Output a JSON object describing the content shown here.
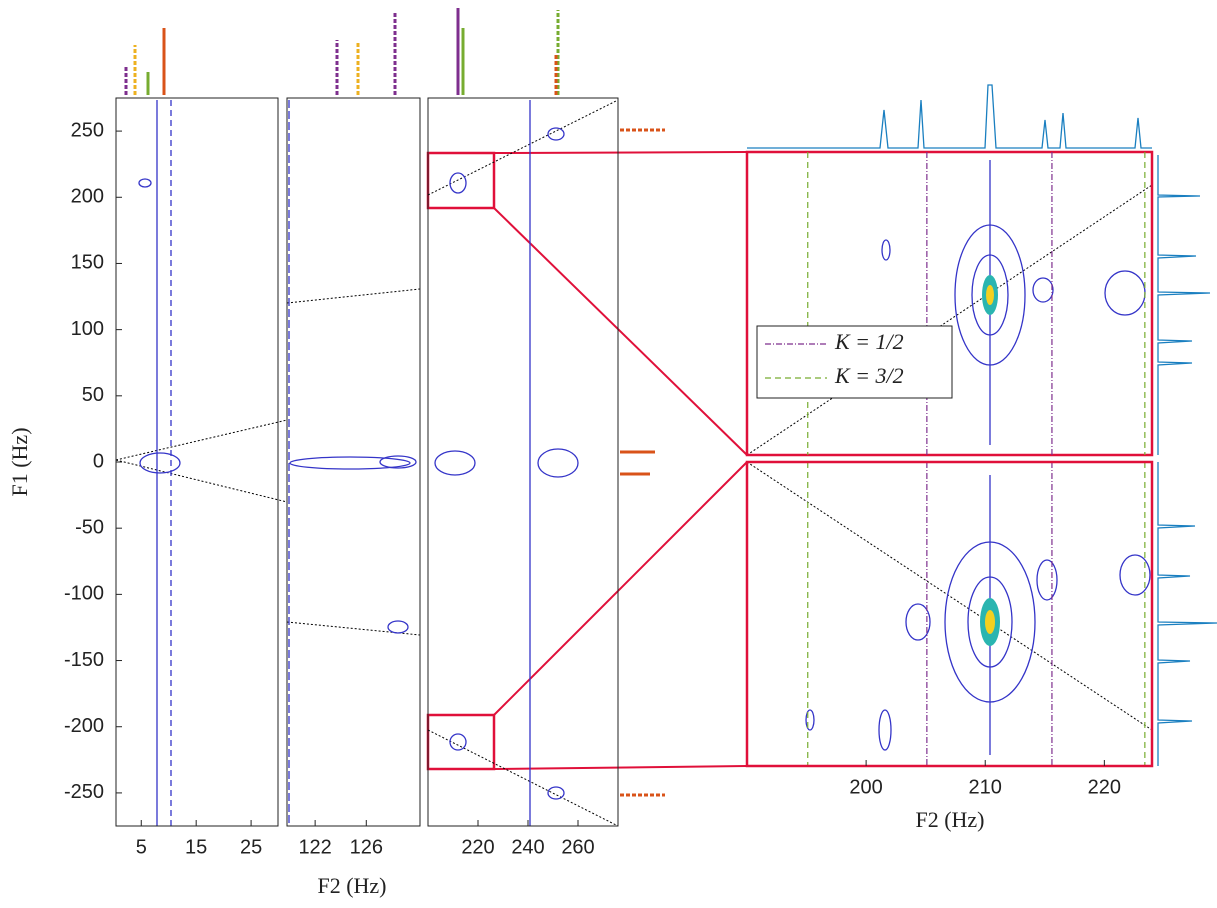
{
  "chart_data": [
    {
      "type": "contour",
      "ylabel": "F1 (Hz)",
      "xlim": [
        0.4,
        29.9
      ],
      "xticks": [
        5,
        15,
        25
      ],
      "ylim": [
        -275,
        275
      ],
      "yticks": [
        250,
        200,
        150,
        100,
        50,
        0,
        -50,
        -100,
        -150,
        -200,
        -250
      ]
    },
    {
      "type": "contour",
      "xlabel": "F2 (Hz)",
      "xlim": [
        119.8,
        130.2
      ],
      "xticks": [
        122,
        126
      ],
      "ylim": [
        -275,
        275
      ]
    },
    {
      "type": "contour",
      "xlim": [
        200,
        276
      ],
      "xticks": [
        220,
        240,
        260
      ],
      "ylim": [
        -275,
        275
      ]
    },
    {
      "type": "contour",
      "xlim": [
        190,
        224
      ],
      "legend": "middle left",
      "series": [
        {
          "name": "K = 1/2",
          "color": "#7E2F8E",
          "values": [
            205.1,
            215.6
          ]
        },
        {
          "name": "K = 3/2",
          "color": "#77AC30",
          "values": [
            195.1,
            223.4
          ]
        }
      ]
    },
    {
      "type": "contour",
      "xlabel": "F2 (Hz)",
      "xlim": [
        190,
        224
      ],
      "xticks": [
        200,
        210,
        220
      ]
    }
  ]
}
